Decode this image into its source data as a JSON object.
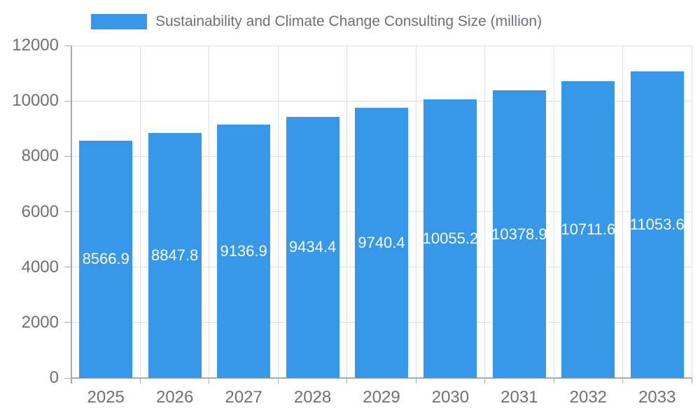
{
  "chart_data": {
    "type": "bar",
    "title": "Sustainability and Climate Change Consulting Size (million)",
    "legend": {
      "label": "Sustainability and Climate Change Consulting Size (million)",
      "position": "top"
    },
    "categories": [
      "2025",
      "2026",
      "2027",
      "2028",
      "2029",
      "2030",
      "2031",
      "2032",
      "2033"
    ],
    "series": [
      {
        "name": "Sustainability and Climate Change Consulting Size (million)",
        "values": [
          8566.9,
          8847.8,
          9136.9,
          9434.4,
          9740.4,
          10055.2,
          10378.9,
          10711.6,
          11053.6
        ]
      }
    ],
    "value_labels": [
      "8566.9",
      "8847.8",
      "9136.9",
      "9434.4",
      "9740.4",
      "10055.2",
      "10378.9",
      "10711.6",
      "11053.6"
    ],
    "xlabel": "",
    "ylabel": "",
    "ylim": [
      0,
      12000
    ],
    "yticks": [
      0,
      2000,
      4000,
      6000,
      8000,
      10000,
      12000
    ],
    "ytick_labels": [
      "0",
      "2000",
      "4000",
      "6000",
      "8000",
      "10000",
      "12000"
    ],
    "grid": true,
    "legend_position": "top",
    "bar_color": "#3798EA",
    "value_label_color": "#FFFFFF"
  },
  "colors": {
    "bar": "#3798EA",
    "axis_line": "#A7ABB0",
    "grid_line": "#E0E0E0",
    "axis_text": "#6E7079",
    "legend_text": "#6E7079",
    "value_text": "#FFFFFF",
    "background": "#FFFFFF"
  }
}
